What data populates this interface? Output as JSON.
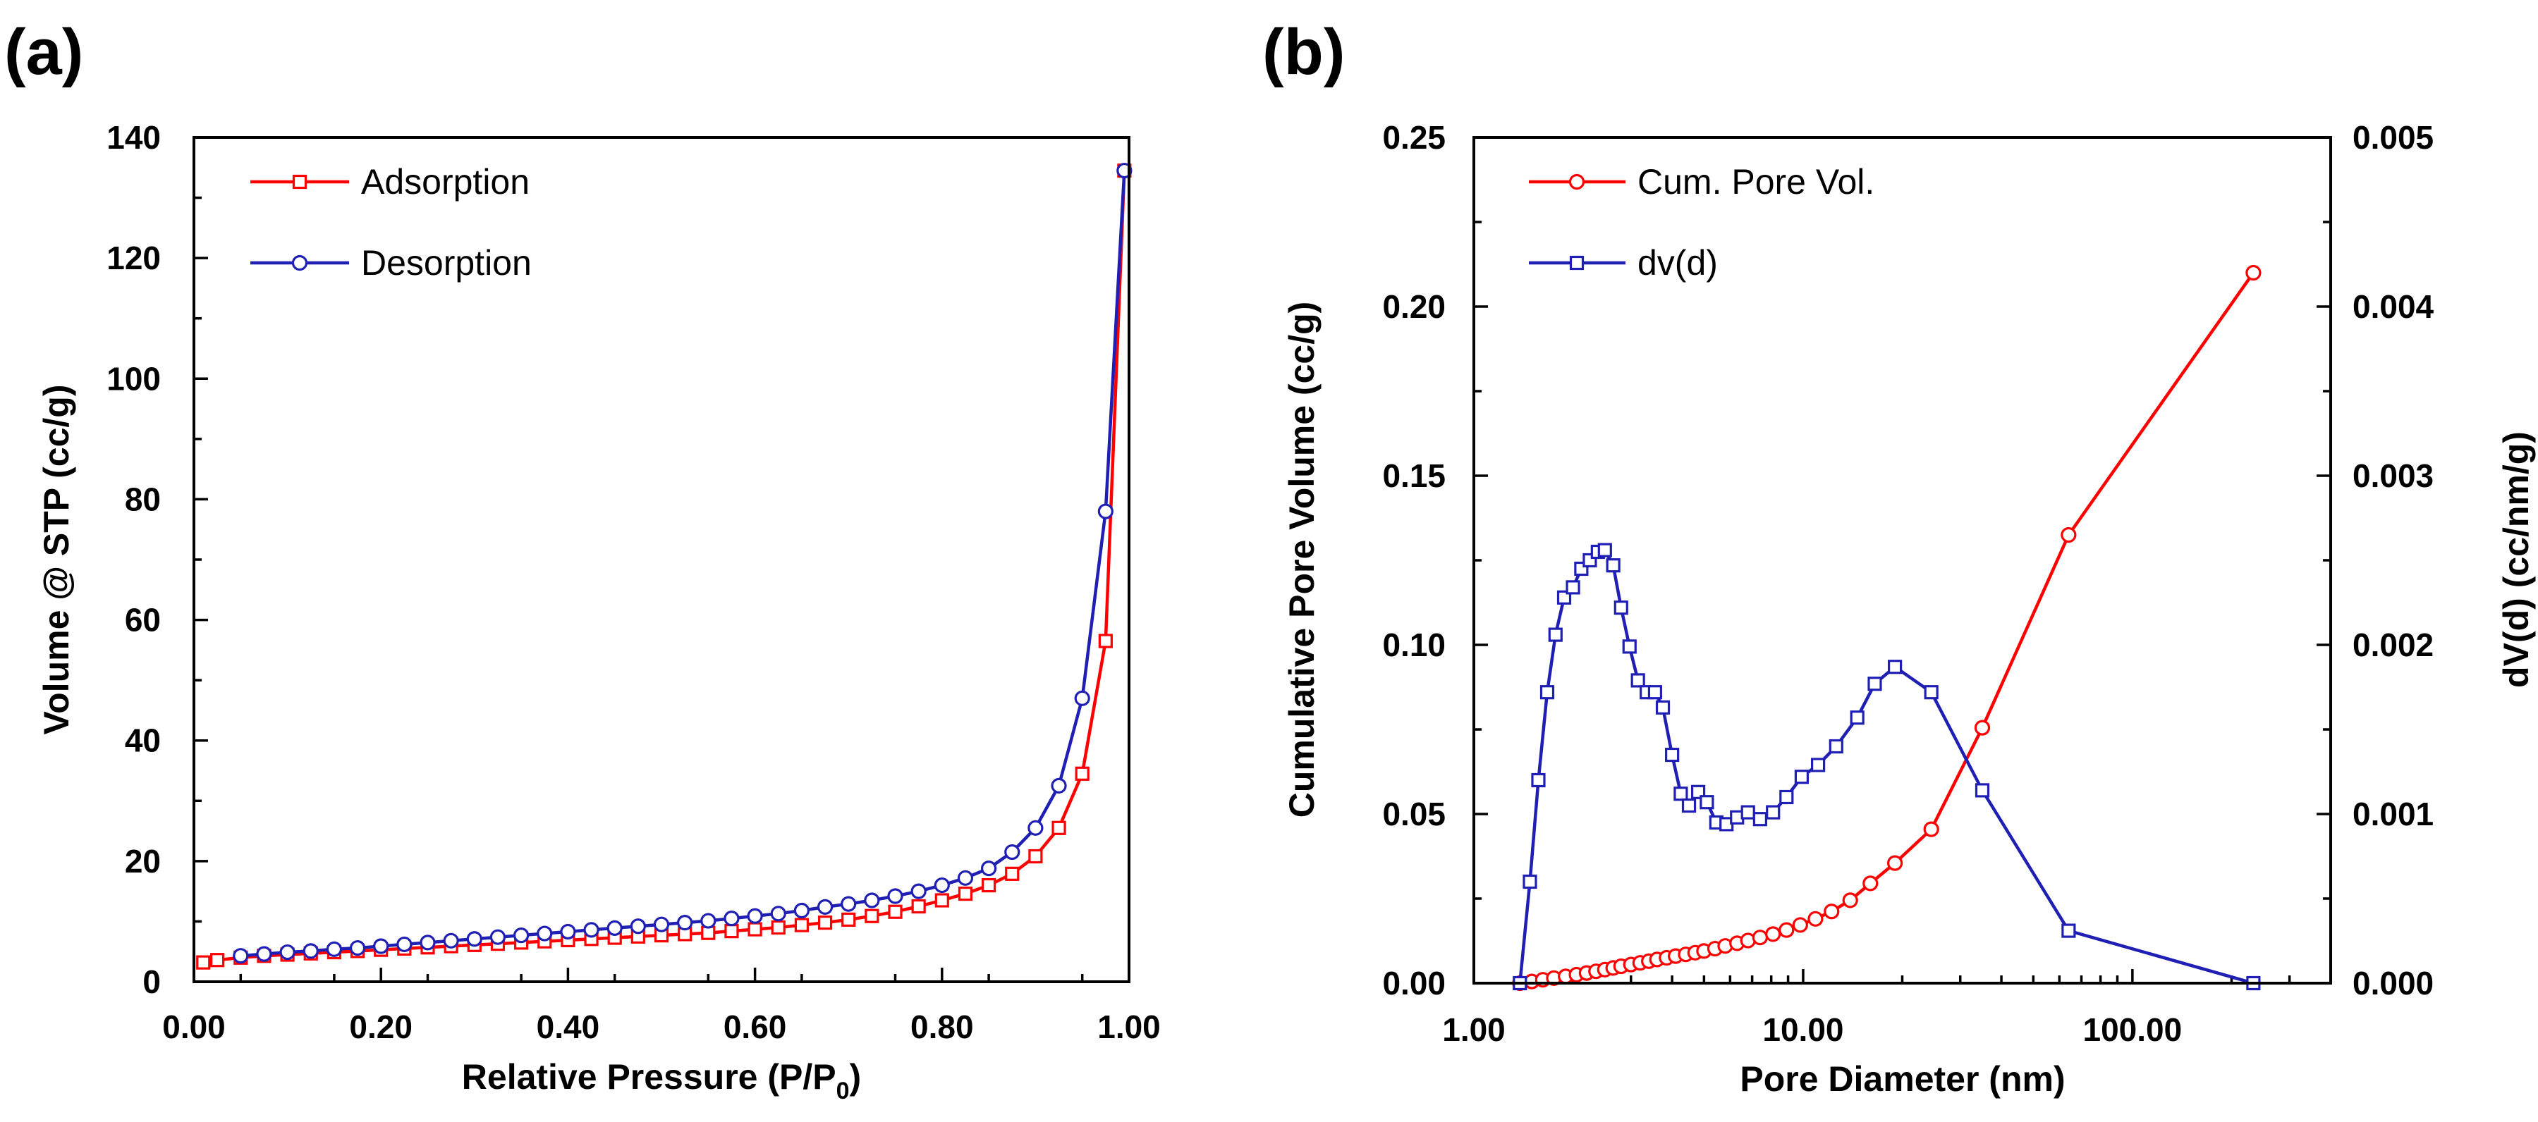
{
  "chart_data": [
    {
      "panel_label": "(a)",
      "type": "line",
      "xlabel": "Relative Pressure (P/P",
      "xlabel_sub": "0",
      "xlabel_end": ")",
      "ylabel": "Volume @ STP (cc/g)",
      "xlim": [
        0,
        1
      ],
      "ylim": [
        0,
        140
      ],
      "xticks": [
        "0.00",
        "0.20",
        "0.40",
        "0.60",
        "0.80",
        "1.00"
      ],
      "yticks": [
        "0",
        "20",
        "40",
        "60",
        "80",
        "100",
        "120",
        "140"
      ],
      "legend_position": "top-left",
      "series": [
        {
          "name": "Adsorption",
          "color": "#ff0000",
          "marker": "square",
          "x": [
            0.01,
            0.025,
            0.05,
            0.075,
            0.1,
            0.125,
            0.15,
            0.175,
            0.2,
            0.225,
            0.25,
            0.275,
            0.3,
            0.325,
            0.35,
            0.375,
            0.4,
            0.425,
            0.45,
            0.475,
            0.5,
            0.525,
            0.55,
            0.575,
            0.6,
            0.625,
            0.65,
            0.675,
            0.7,
            0.725,
            0.75,
            0.775,
            0.8,
            0.825,
            0.85,
            0.875,
            0.9,
            0.925,
            0.95,
            0.975,
            0.995
          ],
          "y": [
            3.2,
            3.6,
            4.0,
            4.3,
            4.5,
            4.7,
            4.9,
            5.1,
            5.3,
            5.5,
            5.7,
            5.9,
            6.1,
            6.3,
            6.5,
            6.7,
            6.9,
            7.1,
            7.3,
            7.5,
            7.7,
            7.9,
            8.1,
            8.4,
            8.7,
            9.0,
            9.4,
            9.8,
            10.3,
            10.9,
            11.6,
            12.5,
            13.5,
            14.6,
            16.0,
            17.9,
            20.8,
            25.5,
            34.5,
            56.5,
            134.5
          ]
        },
        {
          "name": "Desorption",
          "color": "#1f1fb4",
          "marker": "circle",
          "x": [
            0.995,
            0.975,
            0.95,
            0.925,
            0.9,
            0.875,
            0.85,
            0.825,
            0.8,
            0.775,
            0.75,
            0.725,
            0.7,
            0.675,
            0.65,
            0.625,
            0.6,
            0.575,
            0.55,
            0.525,
            0.5,
            0.475,
            0.45,
            0.425,
            0.4,
            0.375,
            0.35,
            0.325,
            0.3,
            0.275,
            0.25,
            0.225,
            0.2,
            0.175,
            0.15,
            0.125,
            0.1,
            0.075,
            0.05
          ],
          "y": [
            134.5,
            78.0,
            47.0,
            32.5,
            25.5,
            21.5,
            18.8,
            17.2,
            16.0,
            15.0,
            14.2,
            13.5,
            12.9,
            12.4,
            11.8,
            11.3,
            10.9,
            10.5,
            10.1,
            9.8,
            9.5,
            9.2,
            8.9,
            8.6,
            8.3,
            8.0,
            7.7,
            7.4,
            7.1,
            6.8,
            6.5,
            6.2,
            5.9,
            5.6,
            5.4,
            5.1,
            4.9,
            4.6,
            4.3
          ]
        }
      ]
    },
    {
      "panel_label": "(b)",
      "type": "line",
      "xlabel": "Pore Diameter (nm)",
      "ylabel": "Cumulative Pore Volume (cc/g)",
      "ylabel_right": "dV(d) (cc/nm/g)",
      "x_scale": "log",
      "xlim": [
        1,
        400
      ],
      "ylim": [
        0,
        0.25
      ],
      "ylim_right": [
        0,
        0.005
      ],
      "xticks": [
        "1.00",
        "10.00",
        "100.00"
      ],
      "xtick_values": [
        1,
        10,
        100
      ],
      "yticks": [
        "0.00",
        "0.05",
        "0.10",
        "0.15",
        "0.20",
        "0.25"
      ],
      "yticks_right": [
        "0.000",
        "0.001",
        "0.002",
        "0.003",
        "0.004",
        "0.005"
      ],
      "legend_position": "top-left",
      "series": [
        {
          "name": "Cum. Pore Vol.",
          "color": "#ff0000",
          "marker": "circle",
          "axis": "left",
          "x": [
            1.38,
            1.5,
            1.62,
            1.75,
            1.9,
            2.05,
            2.2,
            2.35,
            2.5,
            2.65,
            2.8,
            3.0,
            3.2,
            3.4,
            3.6,
            3.85,
            4.1,
            4.4,
            4.7,
            5.0,
            5.4,
            5.8,
            6.3,
            6.8,
            7.4,
            8.1,
            8.9,
            9.8,
            10.9,
            12.2,
            13.9,
            16.0,
            19.0,
            24.5,
            35.0,
            64.0,
            233.0
          ],
          "y": [
            0.0,
            0.0005,
            0.001,
            0.0015,
            0.002,
            0.0025,
            0.003,
            0.0035,
            0.004,
            0.0045,
            0.005,
            0.0055,
            0.006,
            0.0065,
            0.007,
            0.0075,
            0.008,
            0.0085,
            0.009,
            0.0095,
            0.0102,
            0.011,
            0.0118,
            0.0126,
            0.0135,
            0.0145,
            0.0157,
            0.0172,
            0.019,
            0.0212,
            0.0245,
            0.0295,
            0.0355,
            0.0455,
            0.0755,
            0.1325,
            0.21
          ]
        },
        {
          "name": "dv(d)",
          "color": "#1f1fb4",
          "marker": "square",
          "axis": "right",
          "x": [
            1.38,
            1.48,
            1.57,
            1.67,
            1.77,
            1.88,
            2.0,
            2.12,
            2.25,
            2.38,
            2.5,
            2.65,
            2.8,
            2.97,
            3.15,
            3.35,
            3.55,
            3.75,
            4.0,
            4.25,
            4.5,
            4.8,
            5.1,
            5.45,
            5.85,
            6.3,
            6.8,
            7.4,
            8.1,
            8.9,
            9.9,
            11.1,
            12.6,
            14.6,
            16.5,
            19.0,
            24.5,
            35.0,
            64.0,
            233.0
          ],
          "y": [
            0.0,
            0.0006,
            0.0012,
            0.00172,
            0.00206,
            0.00228,
            0.00234,
            0.00245,
            0.0025,
            0.00255,
            0.00256,
            0.00247,
            0.00222,
            0.00199,
            0.00179,
            0.00172,
            0.00172,
            0.00163,
            0.00135,
            0.00112,
            0.00105,
            0.00113,
            0.00107,
            0.00095,
            0.00094,
            0.00098,
            0.00101,
            0.00097,
            0.00101,
            0.0011,
            0.00122,
            0.00129,
            0.0014,
            0.00157,
            0.00177,
            0.00187,
            0.00172,
            0.00114,
            0.00031,
            0.0
          ]
        }
      ]
    }
  ]
}
